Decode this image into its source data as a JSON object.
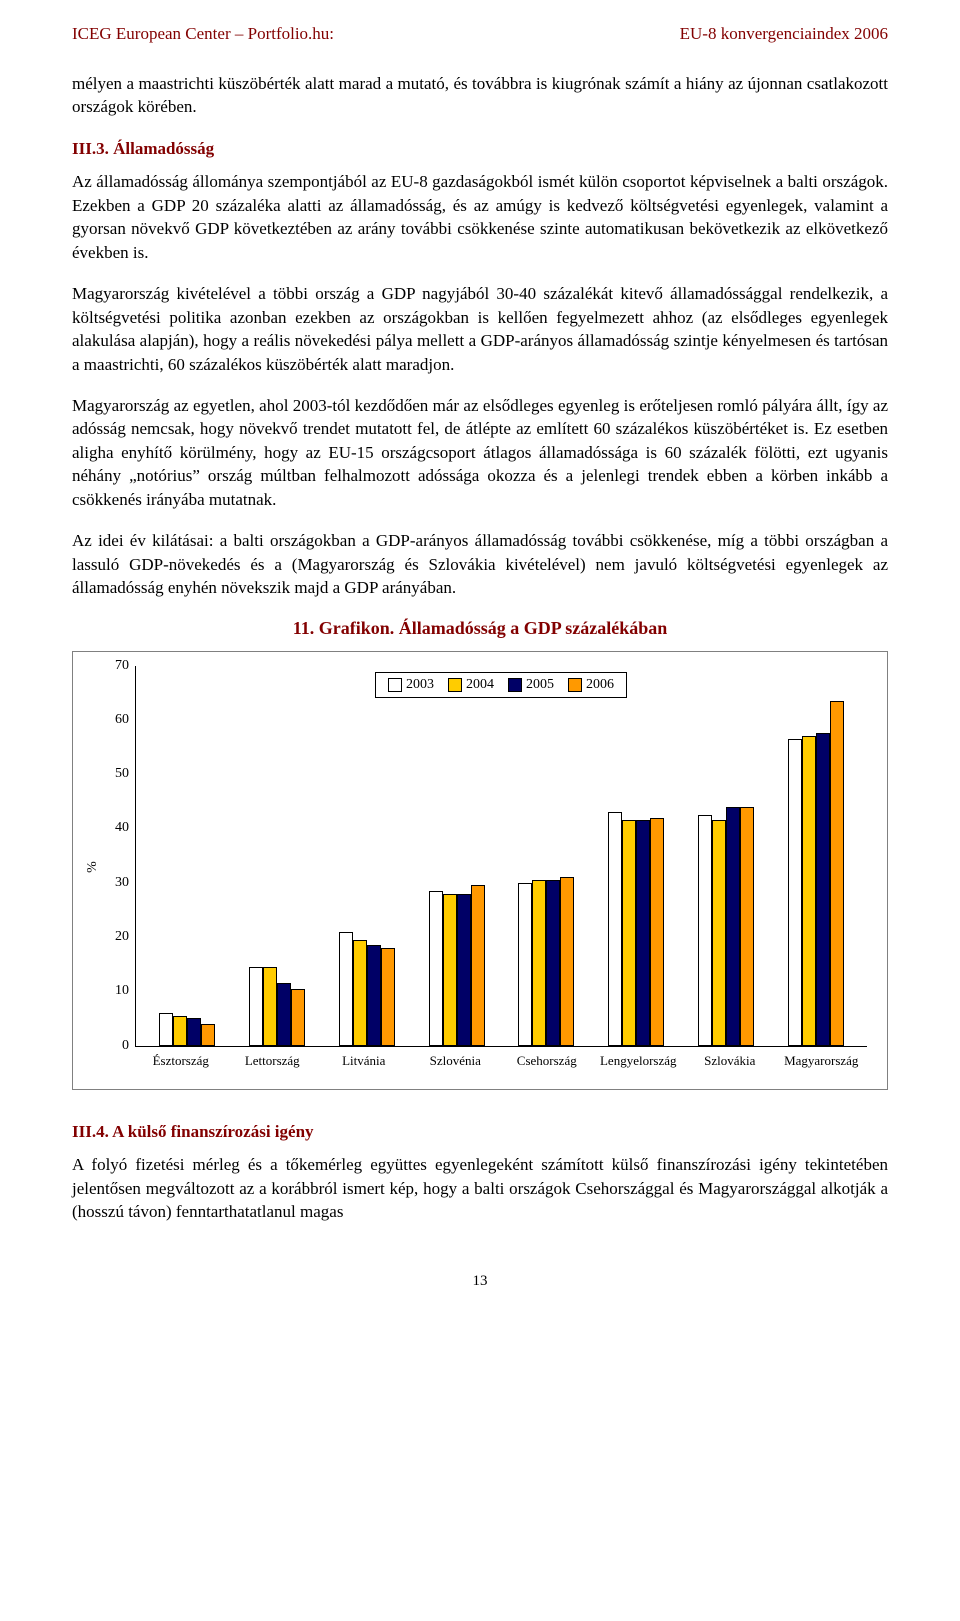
{
  "header": {
    "left": "ICEG European Center – Portfolio.hu:",
    "right": "EU-8 konvergenciaindex 2006"
  },
  "para1": "mélyen a maastrichti küszöbérték alatt marad a mutató, és továbbra is kiugrónak számít a hiány az újonnan csatlakozott országok körében.",
  "sec3_heading": "III.3. Államadósság",
  "para2": "Az államadósság állománya szempontjából az EU-8 gazdaságokból ismét külön csoportot képviselnek a balti országok. Ezekben a GDP 20 százaléka alatti az államadósság, és az amúgy is kedvező költségvetési egyenlegek, valamint a gyorsan növekvő GDP következtében az arány további csökkenése szinte automatikusan bekövetkezik az elkövetkező években is.",
  "para3": "Magyarország kivételével a többi ország a GDP nagyjából 30-40 százalékát kitevő államadóssággal rendelkezik, a költségvetési politika azonban ezekben az országokban is kellően fegyelmezett ahhoz (az elsődleges egyenlegek alakulása alapján), hogy a reális növekedési pálya mellett a GDP-arányos államadósság szintje kényelmesen és tartósan a maastrichti, 60 százalékos küszöbérték alatt maradjon.",
  "para4": "Magyarország az egyetlen, ahol 2003-tól kezdődően már az elsődleges egyenleg is erőteljesen romló pályára állt, így az adósság nemcsak, hogy növekvő trendet mutatott fel, de átlépte az említett 60 százalékos küszöbértéket is. Ez esetben aligha enyhítő körülmény, hogy az EU-15 országcsoport átlagos államadóssága is 60 százalék fölötti, ezt ugyanis néhány „notórius” ország múltban felhalmozott adóssága okozza és a jelenlegi trendek ebben a körben inkább a csökkenés irányába mutatnak.",
  "para5": "Az idei év kilátásai: a balti országokban a GDP-arányos államadósság további csökkenése, míg a többi országban a lassuló GDP-növekedés és a (Magyarország és Szlovákia kivételével) nem javuló költségvetési egyenlegek az államadósság enyhén növekszik majd a GDP arányában.",
  "chart": {
    "title": "11. Grafikon. Államadósság a GDP százalékában",
    "ylabel": "%",
    "ymax": 70,
    "ytick_step": 10,
    "yticks": [
      "70",
      "60",
      "50",
      "40",
      "30",
      "20",
      "10",
      "0"
    ],
    "legend": [
      "2003",
      "2004",
      "2005",
      "2006"
    ],
    "colors": [
      "#ffffff",
      "#ffcc00",
      "#000066",
      "#ff9900"
    ],
    "categories": [
      "Észtország",
      "Lettország",
      "Litvánia",
      "Szlovénia",
      "Csehország",
      "Lengyelország",
      "Szlovákia",
      "Magyarország"
    ],
    "series": [
      [
        6.0,
        5.5,
        5.0,
        4.0
      ],
      [
        14.5,
        14.5,
        11.5,
        10.5
      ],
      [
        21.0,
        19.5,
        18.5,
        18.0
      ],
      [
        28.5,
        28.0,
        28.0,
        29.5
      ],
      [
        30.0,
        30.5,
        30.5,
        31.0
      ],
      [
        43.0,
        41.5,
        41.5,
        42.0
      ],
      [
        42.5,
        41.5,
        44.0,
        44.0
      ],
      [
        56.5,
        57.0,
        57.5,
        63.5
      ]
    ]
  },
  "sec4_heading": "III.4. A külső finanszírozási igény",
  "para6": "A folyó fizetési mérleg és a tőkemérleg együttes egyenlegeként számított külső finanszírozási igény tekintetében jelentősen megváltozott az a korábbról ismert kép, hogy a balti országok Csehországgal és Magyarországgal alkotják a (hosszú távon) fenntarthatatlanul magas",
  "page_number": "13"
}
